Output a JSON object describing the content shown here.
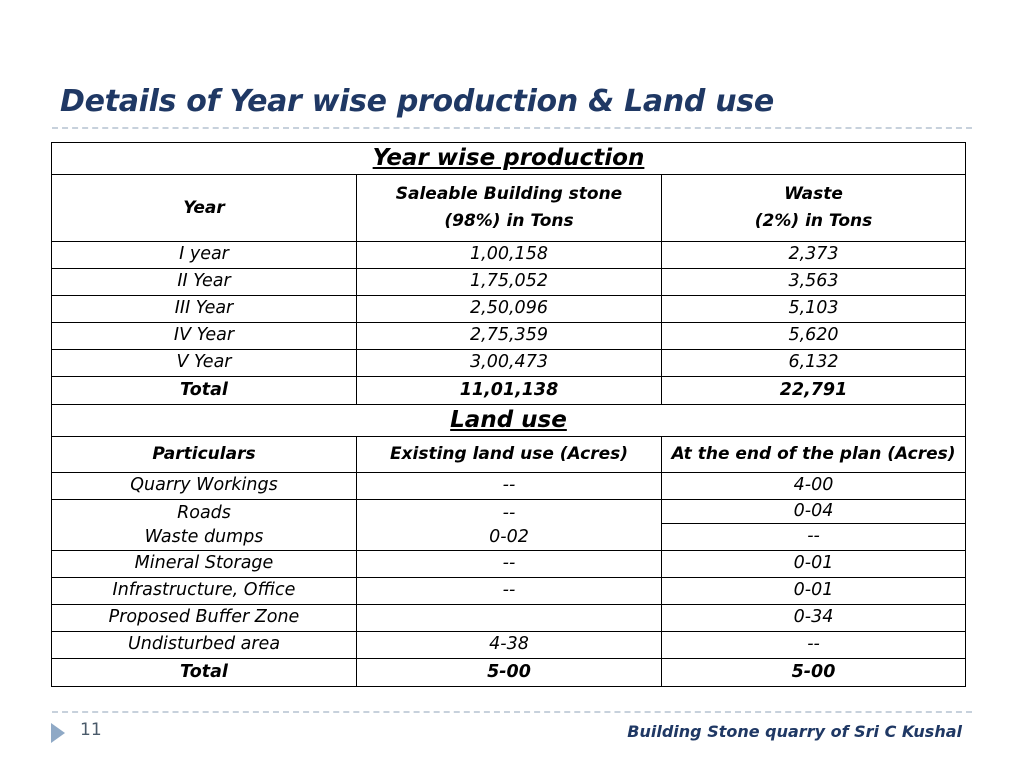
{
  "slide": {
    "title": "Details of Year wise production & Land use",
    "page_number": "11",
    "footer": "Building Stone quarry of  Sri C Kushal"
  },
  "production": {
    "section_title": "Year wise production",
    "headers": {
      "year": "Year",
      "saleable_line1": "Saleable Building stone",
      "saleable_line2": "(98%) in Tons",
      "waste_line1": "Waste",
      "waste_line2": "(2%) in Tons"
    },
    "rows": [
      {
        "year": "I year",
        "saleable": "1,00,158",
        "waste": "2,373"
      },
      {
        "year": "II Year",
        "saleable": "1,75,052",
        "waste": "3,563"
      },
      {
        "year": "III Year",
        "saleable": "2,50,096",
        "waste": "5,103"
      },
      {
        "year": "IV Year",
        "saleable": "2,75,359",
        "waste": "5,620"
      },
      {
        "year": "V Year",
        "saleable": "3,00,473",
        "waste": "6,132"
      }
    ],
    "total": {
      "label": "Total",
      "saleable": "11,01,138",
      "waste": "22,791"
    }
  },
  "land_use": {
    "section_title": "Land use",
    "headers": {
      "particulars": "Particulars",
      "existing": "Existing land use (Acres)",
      "end_of_plan": "At the end of the plan (Acres)"
    },
    "quarry": {
      "particular": "Quarry Workings",
      "existing": "--",
      "end": "4-00"
    },
    "roads_waste": {
      "particular_1": "Roads",
      "particular_2": "Waste dumps",
      "existing_1": "--",
      "existing_2": "0-02",
      "end_1": "0-04",
      "end_2": "--"
    },
    "rows": [
      {
        "particular": "Mineral Storage",
        "existing": "--",
        "end": "0-01"
      },
      {
        "particular": "Infrastructure, Office",
        "existing": "--",
        "end": "0-01"
      },
      {
        "particular": "Proposed Buffer Zone",
        "existing": "",
        "end": "0-34"
      },
      {
        "particular": "Undisturbed area",
        "existing": "4-38",
        "end": "--"
      }
    ],
    "total": {
      "label": "Total",
      "existing": "5-00",
      "end": "5-00"
    }
  }
}
